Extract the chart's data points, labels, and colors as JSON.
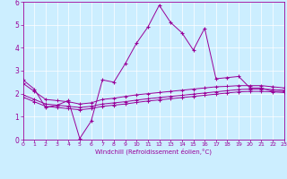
{
  "xlabel": "Windchill (Refroidissement éolien,°C)",
  "bg_color": "#cceeff",
  "line_color": "#990099",
  "xlim": [
    0,
    23
  ],
  "ylim": [
    0,
    6
  ],
  "xticks": [
    0,
    1,
    2,
    3,
    4,
    5,
    6,
    7,
    8,
    9,
    10,
    11,
    12,
    13,
    14,
    15,
    16,
    17,
    18,
    19,
    20,
    21,
    22,
    23
  ],
  "yticks": [
    0,
    1,
    2,
    3,
    4,
    5,
    6
  ],
  "series1_x": [
    0,
    1,
    2,
    3,
    4,
    5,
    6,
    7,
    8,
    9,
    10,
    11,
    12,
    13,
    14,
    15,
    16,
    17,
    18,
    19,
    20,
    21,
    22,
    23
  ],
  "series1_y": [
    2.6,
    2.2,
    1.4,
    1.5,
    1.7,
    0.05,
    0.8,
    2.6,
    2.5,
    3.3,
    4.2,
    4.9,
    5.85,
    5.1,
    4.65,
    3.9,
    4.85,
    2.65,
    2.7,
    2.75,
    2.25,
    2.25,
    2.1,
    2.1
  ],
  "series2_x": [
    0,
    1,
    2,
    3,
    4,
    5,
    6,
    7,
    8,
    9,
    10,
    11,
    12,
    13,
    14,
    15,
    16,
    17,
    18,
    19,
    20,
    21,
    22,
    23
  ],
  "series2_y": [
    2.45,
    2.1,
    1.75,
    1.7,
    1.65,
    1.55,
    1.6,
    1.75,
    1.8,
    1.88,
    1.95,
    2.0,
    2.05,
    2.1,
    2.15,
    2.2,
    2.25,
    2.3,
    2.32,
    2.35,
    2.35,
    2.35,
    2.3,
    2.25
  ],
  "series3_x": [
    0,
    1,
    2,
    3,
    4,
    5,
    6,
    7,
    8,
    9,
    10,
    11,
    12,
    13,
    14,
    15,
    16,
    17,
    18,
    19,
    20,
    21,
    22,
    23
  ],
  "series3_y": [
    1.95,
    1.75,
    1.55,
    1.5,
    1.45,
    1.4,
    1.45,
    1.55,
    1.6,
    1.65,
    1.72,
    1.78,
    1.83,
    1.88,
    1.93,
    1.98,
    2.03,
    2.08,
    2.13,
    2.18,
    2.2,
    2.2,
    2.18,
    2.15
  ],
  "series4_x": [
    0,
    1,
    2,
    3,
    4,
    5,
    6,
    7,
    8,
    9,
    10,
    11,
    12,
    13,
    14,
    15,
    16,
    17,
    18,
    19,
    20,
    21,
    22,
    23
  ],
  "series4_y": [
    1.85,
    1.65,
    1.45,
    1.4,
    1.35,
    1.3,
    1.35,
    1.45,
    1.5,
    1.55,
    1.62,
    1.68,
    1.73,
    1.78,
    1.83,
    1.88,
    1.93,
    1.98,
    2.03,
    2.08,
    2.1,
    2.1,
    2.08,
    2.05
  ]
}
